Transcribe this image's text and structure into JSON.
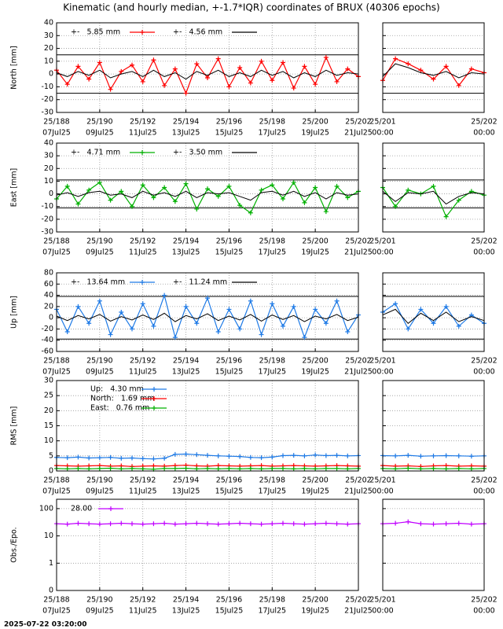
{
  "chart_data": {
    "type": "line",
    "title": "Kinematic (and hourly median, +-1.7*IQR) coordinates of BRUX (40306 epochs)",
    "timestamp": "2025-07-22 03:20:00",
    "xlim": [
      188,
      202
    ],
    "zoom_xlim": [
      201,
      202
    ],
    "xticks": [
      {
        "value": 188,
        "label": "25/188",
        "date": "07Jul25"
      },
      {
        "value": 190,
        "label": "25/190",
        "date": "09Jul25"
      },
      {
        "value": 192,
        "label": "25/192",
        "date": "11Jul25"
      },
      {
        "value": 194,
        "label": "25/194",
        "date": "13Jul25"
      },
      {
        "value": 196,
        "label": "25/196",
        "date": "15Jul25"
      },
      {
        "value": 198,
        "label": "25/198",
        "date": "17Jul25"
      },
      {
        "value": 200,
        "label": "25/200",
        "date": "19Jul25"
      },
      {
        "value": 202,
        "label": "25/202",
        "date": "21Jul25"
      }
    ],
    "zoom_xticks": [
      {
        "value": 201,
        "label": "25/201",
        "date": "00:00"
      },
      {
        "value": 202,
        "label": "25/202",
        "date": "00:00"
      }
    ],
    "x": [
      188,
      188.5,
      189,
      189.5,
      190,
      190.5,
      191,
      191.5,
      192,
      192.5,
      193,
      193.5,
      194,
      194.5,
      195,
      195.5,
      196,
      196.5,
      197,
      197.5,
      198,
      198.5,
      199,
      199.5,
      200,
      200.5,
      201,
      201.5,
      202
    ],
    "zoom_x": [
      201,
      201.125,
      201.25,
      201.375,
      201.5,
      201.625,
      201.75,
      201.875,
      202
    ],
    "panels": [
      {
        "ylabel": "North [mm]",
        "ylim": [
          -30,
          40
        ],
        "yticks": [
          -30,
          -20,
          -10,
          0,
          10,
          20,
          30,
          40
        ],
        "limits": [
          15,
          -15
        ],
        "legend": "row",
        "series": [
          {
            "name": "+-   5.85 mm",
            "color": "#ff0000",
            "marker": true,
            "values": [
              3,
              -8,
              6,
              -4,
              9,
              -12,
              2,
              7,
              -6,
              11,
              -9,
              4,
              -15,
              8,
              -3,
              12,
              -10,
              5,
              -7,
              10,
              -5,
              9,
              -11,
              6,
              -8,
              13,
              -6,
              4,
              -2
            ],
            "zoom_values": [
              -5,
              12,
              8,
              3,
              -4,
              6,
              -9,
              4,
              1
            ]
          },
          {
            "name": "+-   4.56 mm",
            "color": "#000000",
            "marker": false,
            "values": [
              1,
              -2,
              2,
              -1,
              3,
              -3,
              0,
              2,
              -2,
              3,
              -2,
              1,
              -4,
              2,
              -1,
              3,
              -2,
              1,
              -2,
              3,
              -1,
              2,
              -3,
              1,
              -2,
              3,
              -1,
              1,
              0
            ],
            "zoom_values": [
              -2,
              8,
              5,
              1,
              -1,
              2,
              -3,
              1,
              0
            ]
          }
        ]
      },
      {
        "ylabel": "East [mm]",
        "ylim": [
          -30,
          40
        ],
        "yticks": [
          -30,
          -20,
          -10,
          0,
          10,
          20,
          30,
          40
        ],
        "limits": [
          11,
          -11
        ],
        "legend": "row",
        "series": [
          {
            "name": "+-   4.71 mm",
            "color": "#00b000",
            "marker": true,
            "values": [
              -4,
              6,
              -8,
              3,
              9,
              -5,
              2,
              -10,
              7,
              -3,
              5,
              -6,
              8,
              -12,
              4,
              -2,
              6,
              -9,
              -15,
              3,
              7,
              -4,
              9,
              -7,
              5,
              -14,
              6,
              -3,
              2
            ],
            "zoom_values": [
              5,
              -10,
              3,
              0,
              6,
              -18,
              -5,
              2,
              -1
            ]
          },
          {
            "name": "+-   3.50 mm",
            "color": "#000000",
            "marker": false,
            "values": [
              -1,
              1,
              -2,
              1,
              2,
              -1,
              0,
              -3,
              2,
              -1,
              1,
              -2,
              2,
              -3,
              1,
              0,
              1,
              -2,
              -5,
              1,
              2,
              -1,
              2,
              -2,
              1,
              -4,
              1,
              -1,
              0
            ],
            "zoom_values": [
              2,
              -6,
              1,
              0,
              2,
              -8,
              -2,
              1,
              0
            ]
          }
        ]
      },
      {
        "ylabel": "Up [mm]",
        "ylim": [
          -60,
          80
        ],
        "yticks": [
          -60,
          -40,
          -20,
          0,
          20,
          40,
          60,
          80
        ],
        "limits": [
          38,
          -38
        ],
        "legend": "row",
        "series": [
          {
            "name": "+-   13.64 mm",
            "color": "#1e7ae6",
            "marker": true,
            "values": [
              15,
              -25,
              20,
              -10,
              30,
              -30,
              10,
              -20,
              25,
              -15,
              40,
              -35,
              20,
              -10,
              35,
              -25,
              15,
              -20,
              30,
              -30,
              25,
              -15,
              20,
              -35,
              15,
              -10,
              30,
              -25,
              5
            ],
            "zoom_values": [
              10,
              25,
              -20,
              15,
              -10,
              20,
              -15,
              5,
              -10
            ]
          },
          {
            "name": "+-   11.24 mm",
            "color": "#000000",
            "marker": false,
            "values": [
              3,
              -5,
              4,
              -2,
              6,
              -6,
              2,
              -4,
              5,
              -3,
              8,
              -7,
              4,
              -2,
              7,
              -5,
              3,
              -4,
              6,
              -6,
              5,
              -3,
              4,
              -7,
              3,
              -2,
              6,
              -5,
              1
            ],
            "zoom_values": [
              5,
              15,
              -10,
              8,
              -5,
              10,
              -7,
              2,
              -5
            ]
          }
        ]
      },
      {
        "ylabel": "RMS [mm]",
        "ylim": [
          0,
          30
        ],
        "yticks": [
          0,
          5,
          10,
          15,
          20,
          25,
          30
        ],
        "limits": [],
        "legend": "column",
        "series": [
          {
            "name": "Up:   4.30 mm",
            "color": "#1e7ae6",
            "marker": true,
            "values": [
              4.5,
              4.4,
              4.6,
              4.3,
              4.4,
              4.5,
              4.2,
              4.3,
              4.1,
              4.0,
              4.2,
              5.5,
              5.6,
              5.4,
              5.2,
              5.0,
              4.9,
              4.8,
              4.5,
              4.4,
              4.6,
              5.1,
              5.2,
              5.0,
              5.3,
              5.1,
              5.2,
              5.0,
              5.1
            ],
            "zoom_values": [
              5.1,
              5.0,
              5.2,
              4.9,
              5.0,
              5.1,
              5.0,
              4.9,
              5.0
            ]
          },
          {
            "name": "North:   1.69 mm",
            "color": "#ff0000",
            "marker": true,
            "values": [
              1.8,
              1.7,
              1.6,
              1.7,
              1.8,
              1.6,
              1.7,
              1.5,
              1.6,
              1.7,
              1.6,
              1.8,
              1.9,
              1.7,
              1.6,
              1.8,
              1.7,
              1.6,
              1.7,
              1.8,
              1.6,
              1.7,
              1.8,
              1.7,
              1.6,
              1.7,
              1.8,
              1.7,
              1.6
            ],
            "zoom_values": [
              1.8,
              1.6,
              1.7,
              1.5,
              1.7,
              1.8,
              1.6,
              1.7,
              1.6
            ]
          },
          {
            "name": "East:   0.76 mm",
            "color": "#00b000",
            "marker": true,
            "values": [
              0.8,
              0.7,
              0.8,
              0.7,
              0.8,
              0.9,
              0.7,
              0.8,
              0.7,
              0.6,
              0.8,
              0.8,
              0.9,
              0.7,
              0.8,
              0.7,
              0.8,
              0.7,
              0.8,
              0.7,
              0.8,
              0.8,
              0.7,
              0.8,
              0.7,
              0.8,
              0.8,
              0.7,
              0.8
            ],
            "zoom_values": [
              0.8,
              0.7,
              0.9,
              0.7,
              0.8,
              0.7,
              0.8,
              0.7,
              0.8
            ]
          }
        ]
      },
      {
        "ylabel": "Obs./Epo.",
        "ylim": [
          0.1,
          220
        ],
        "log": true,
        "yticks": [
          {
            "value": 0.1,
            "label": "0"
          },
          1,
          10,
          100
        ],
        "limits": [],
        "legend": "row",
        "series": [
          {
            "name": "28.00",
            "color": "#c000ff",
            "marker": true,
            "values": [
              28,
              27,
              29,
              28,
              27,
              28,
              29,
              28,
              27,
              28,
              29,
              27,
              28,
              29,
              28,
              27,
              28,
              29,
              28,
              27,
              28,
              29,
              28,
              27,
              28,
              29,
              28,
              27,
              28
            ],
            "zoom_values": [
              28,
              29,
              33,
              28,
              27,
              28,
              29,
              27,
              28
            ]
          }
        ]
      }
    ]
  }
}
